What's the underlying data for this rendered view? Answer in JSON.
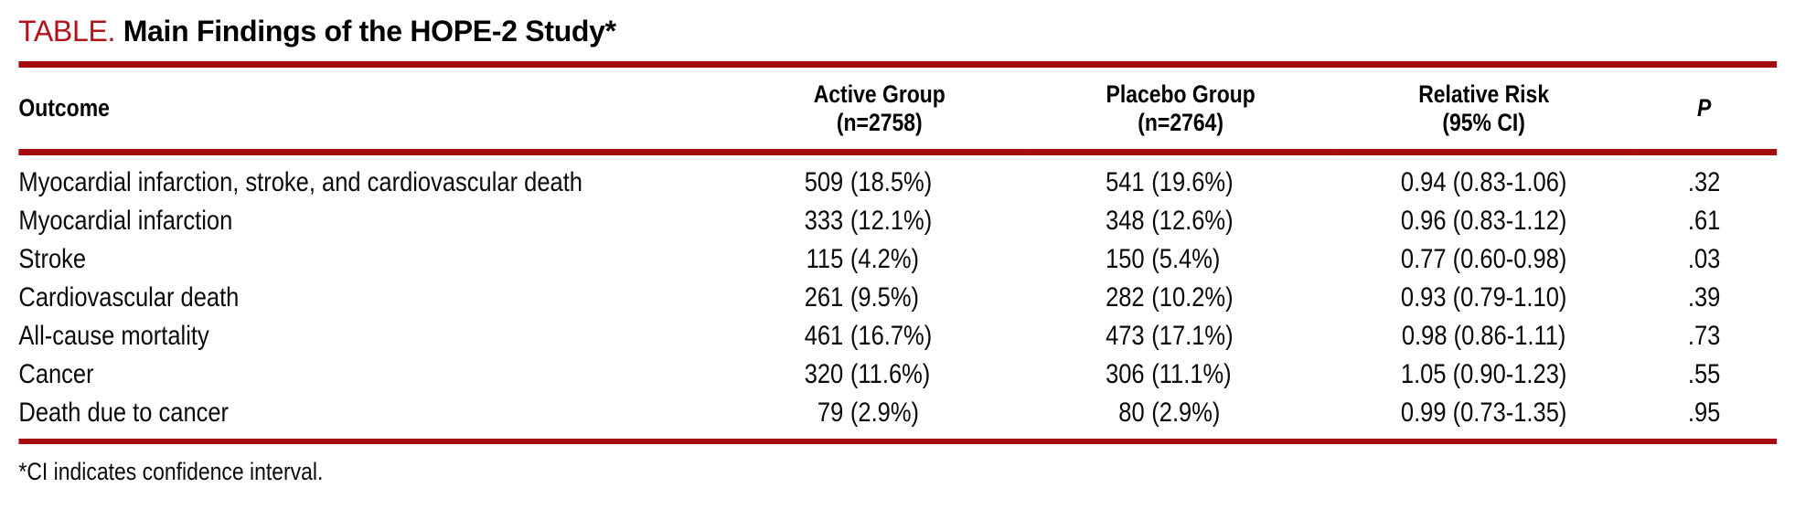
{
  "title": {
    "label": "TABLE.",
    "text": "Main Findings of the HOPE-2 Study*"
  },
  "colors": {
    "rule_red": "#a60b10",
    "title_red": "#b2131a",
    "text_black": "#0a0a0a"
  },
  "table": {
    "headers": {
      "outcome": "Outcome",
      "active_line1": "Active Group",
      "active_line2": "(n=2758)",
      "placebo_line1": "Placebo Group",
      "placebo_line2": "(n=2764)",
      "rr_line1": "Relative Risk",
      "rr_line2": "(95% CI)",
      "p": "P"
    },
    "rows": [
      {
        "outcome": "Myocardial infarction, stroke, and cardiovascular death",
        "active_n": "509",
        "active_pct": "(18.5%)",
        "placebo_n": "541",
        "placebo_pct": "(19.6%)",
        "rr": "0.94 (0.83-1.06)",
        "p": ".32"
      },
      {
        "outcome": "Myocardial infarction",
        "active_n": "333",
        "active_pct": "(12.1%)",
        "placebo_n": "348",
        "placebo_pct": "(12.6%)",
        "rr": "0.96 (0.83-1.12)",
        "p": ".61"
      },
      {
        "outcome": "Stroke",
        "active_n": "115",
        "active_pct": "(4.2%)",
        "placebo_n": "150",
        "placebo_pct": "(5.4%)",
        "rr": "0.77 (0.60-0.98)",
        "p": ".03"
      },
      {
        "outcome": "Cardiovascular death",
        "active_n": "261",
        "active_pct": "(9.5%)",
        "placebo_n": "282",
        "placebo_pct": "(10.2%)",
        "rr": "0.93 (0.79-1.10)",
        "p": ".39"
      },
      {
        "outcome": "All-cause mortality",
        "active_n": "461",
        "active_pct": "(16.7%)",
        "placebo_n": "473",
        "placebo_pct": "(17.1%)",
        "rr": "0.98 (0.86-1.11)",
        "p": ".73"
      },
      {
        "outcome": "Cancer",
        "active_n": "320",
        "active_pct": "(11.6%)",
        "placebo_n": "306",
        "placebo_pct": "(11.1%)",
        "rr": "1.05 (0.90-1.23)",
        "p": ".55"
      },
      {
        "outcome": "Death due to cancer",
        "active_n": "79",
        "active_pct": "(2.9%)",
        "placebo_n": "80",
        "placebo_pct": "(2.9%)",
        "rr": "0.99 (0.73-1.35)",
        "p": ".95"
      }
    ]
  },
  "footnote": "*CI indicates confidence interval."
}
